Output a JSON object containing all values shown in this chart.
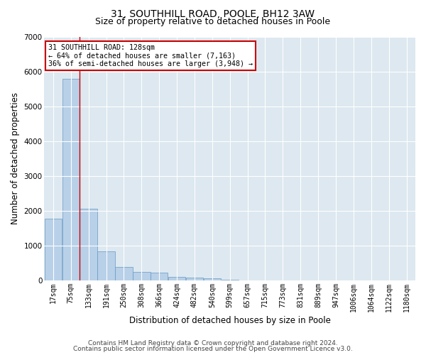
{
  "title_line1": "31, SOUTHHILL ROAD, POOLE, BH12 3AW",
  "title_line2": "Size of property relative to detached houses in Poole",
  "xlabel": "Distribution of detached houses by size in Poole",
  "ylabel": "Number of detached properties",
  "footer_line1": "Contains HM Land Registry data © Crown copyright and database right 2024.",
  "footer_line2": "Contains public sector information licensed under the Open Government Licence v3.0.",
  "bin_labels": [
    "17sqm",
    "75sqm",
    "133sqm",
    "191sqm",
    "250sqm",
    "308sqm",
    "366sqm",
    "424sqm",
    "482sqm",
    "540sqm",
    "599sqm",
    "657sqm",
    "715sqm",
    "773sqm",
    "831sqm",
    "889sqm",
    "947sqm",
    "1006sqm",
    "1064sqm",
    "1122sqm",
    "1180sqm"
  ],
  "bar_heights": [
    1780,
    5780,
    2060,
    830,
    380,
    240,
    230,
    110,
    90,
    60,
    30,
    0,
    0,
    0,
    0,
    0,
    0,
    0,
    0,
    0,
    0
  ],
  "bar_color": "#b8d0e8",
  "bar_edge_color": "#6899c4",
  "vline_color": "#cc0000",
  "annotation_text": "31 SOUTHHILL ROAD: 128sqm\n← 64% of detached houses are smaller (7,163)\n36% of semi-detached houses are larger (3,948) →",
  "annotation_box_color": "#ffffff",
  "annotation_box_edge_color": "#cc0000",
  "ylim": [
    0,
    7000
  ],
  "yticks": [
    0,
    1000,
    2000,
    3000,
    4000,
    5000,
    6000,
    7000
  ],
  "background_color": "#ffffff",
  "plot_bg_color": "#dde8f0",
  "grid_color": "#ffffff",
  "title_fontsize": 10,
  "subtitle_fontsize": 9,
  "axis_label_fontsize": 8.5,
  "tick_fontsize": 7,
  "footer_fontsize": 6.5
}
